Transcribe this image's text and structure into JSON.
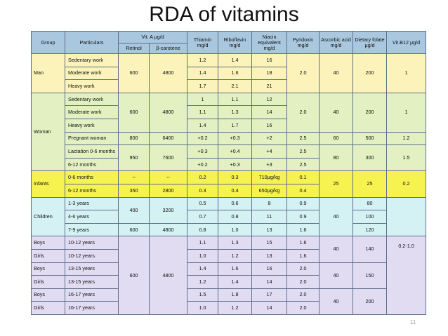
{
  "title": "RDA of vitamins",
  "page_number": "11",
  "colors": {
    "header": "#a9c8e0",
    "man": "#fbf3b9",
    "woman": "#e3f0c2",
    "infants": "#f6f250",
    "children": "#d4f1f4",
    "boys_girls": "#e2dcf3"
  },
  "header": {
    "group": "Group",
    "particulars": "Particulars",
    "vit_a": "Vit. A μg/d",
    "retinol": "Retinol",
    "carotene": "β-carotene",
    "thiamin": "Thiamin mg/d",
    "riboflavin": "Riboflavin mg/d",
    "niacin": "Niacin equivalent mg/d",
    "pyridoxin": "Pyridoxin mg/d",
    "ascorbic": "Ascorbic acid mg/d",
    "folate": "Dietary folate μg/d",
    "b12": "Vit.B12 μg/d"
  },
  "groups": {
    "man": "Man",
    "woman": "Woman",
    "infants": "Infants",
    "children": "Children"
  },
  "rows": [
    {
      "group": "",
      "particular": "Sedentary work",
      "retinol": "",
      "carotene": "",
      "thiamin": "1.2",
      "riboflavin": "1.4",
      "niacin": "16",
      "pyridoxin": "",
      "ascorbic": "",
      "folate": "",
      "b12": ""
    },
    {
      "group": "",
      "particular": "Moderate work",
      "retinol": "600",
      "carotene": "4800",
      "thiamin": "1.4",
      "riboflavin": "1.6",
      "niacin": "18",
      "pyridoxin": "2.0",
      "ascorbic": "40",
      "folate": "200",
      "b12": "1"
    },
    {
      "group": "",
      "particular": "Heavy work",
      "retinol": "",
      "carotene": "",
      "thiamin": "1.7",
      "riboflavin": "2.1",
      "niacin": "21",
      "pyridoxin": "",
      "ascorbic": "",
      "folate": "",
      "b12": ""
    },
    {
      "group": "",
      "particular": "Sedentary work",
      "retinol": "",
      "carotene": "",
      "thiamin": "1",
      "riboflavin": "1.1",
      "niacin": "12",
      "pyridoxin": "",
      "ascorbic": "",
      "folate": "",
      "b12": ""
    },
    {
      "group": "",
      "particular": "Moderate work",
      "retinol": "600",
      "carotene": "4800",
      "thiamin": "1.1",
      "riboflavin": "1.3",
      "niacin": "14",
      "pyridoxin": "2.0",
      "ascorbic": "40",
      "folate": "200",
      "b12": "1"
    },
    {
      "group": "",
      "particular": "Heavy work",
      "retinol": "",
      "carotene": "",
      "thiamin": "1.4",
      "riboflavin": "1.7",
      "niacin": "16",
      "pyridoxin": "",
      "ascorbic": "",
      "folate": "",
      "b12": ""
    },
    {
      "group": "",
      "particular": "Pregnant woman",
      "retinol": "800",
      "carotene": "6400",
      "thiamin": "+0.2",
      "riboflavin": "+0.3",
      "niacin": "+2",
      "pyridoxin": "2.5",
      "ascorbic": "60",
      "folate": "500",
      "b12": "1.2"
    },
    {
      "group": "",
      "particular": "Lactation 0-6 months",
      "retinol": "950",
      "carotene": "7600",
      "thiamin": "+0.3",
      "riboflavin": "+0.4",
      "niacin": "+4",
      "pyridoxin": "2.5",
      "ascorbic": "80",
      "folate": "300",
      "b12": "1.5"
    },
    {
      "group": "",
      "particular": "6-12 months",
      "retinol": "",
      "carotene": "",
      "thiamin": "+0.2",
      "riboflavin": "+0.3",
      "niacin": "+3",
      "pyridoxin": "2.5",
      "ascorbic": "",
      "folate": "",
      "b12": ""
    },
    {
      "group": "",
      "particular": "0-6 months",
      "retinol": "--",
      "carotene": "--",
      "thiamin": "0.2",
      "riboflavin": "0.3",
      "niacin": "710μg/kg",
      "pyridoxin": "0.1",
      "ascorbic": "25",
      "folate": "25",
      "b12": "0.2"
    },
    {
      "group": "",
      "particular": "6-12 months",
      "retinol": "350",
      "carotene": "2800",
      "thiamin": "0.3",
      "riboflavin": "0.4",
      "niacin": "650μg/kg",
      "pyridoxin": "0.4",
      "ascorbic": "",
      "folate": "",
      "b12": ""
    },
    {
      "group": "",
      "particular": "1-3 years",
      "retinol": "400",
      "carotene": "3200",
      "thiamin": "0.5",
      "riboflavin": "0.6",
      "niacin": "8",
      "pyridoxin": "0.9",
      "ascorbic": "40",
      "folate": "80",
      "b12": ""
    },
    {
      "group": "",
      "particular": "4-6 years",
      "retinol": "",
      "carotene": "",
      "thiamin": "0.7",
      "riboflavin": "0.8",
      "niacin": "11",
      "pyridoxin": "0.9",
      "ascorbic": "",
      "folate": "100",
      "b12": ""
    },
    {
      "group": "",
      "particular": "7-9 years",
      "retinol": "600",
      "carotene": "4800",
      "thiamin": "0.8",
      "riboflavin": "1.0",
      "niacin": "13",
      "pyridoxin": "1.6",
      "ascorbic": "",
      "folate": "120",
      "b12": ""
    },
    {
      "group": "Boys",
      "particular": "10-12 years",
      "retinol": "600",
      "carotene": "4800",
      "thiamin": "1.1",
      "riboflavin": "1.3",
      "niacin": "15",
      "pyridoxin": "1.6",
      "ascorbic": "40",
      "folate": "140",
      "b12": "0.2-1.0"
    },
    {
      "group": "Girls",
      "particular": "10-12 years",
      "retinol": "",
      "carotene": "",
      "thiamin": "1.0",
      "riboflavin": "1.2",
      "niacin": "13",
      "pyridoxin": "1.6",
      "ascorbic": "",
      "folate": "",
      "b12": ""
    },
    {
      "group": "Boys",
      "particular": "13-15 years",
      "retinol": "",
      "carotene": "",
      "thiamin": "1.4",
      "riboflavin": "1.6",
      "niacin": "16",
      "pyridoxin": "2.0",
      "ascorbic": "40",
      "folate": "150",
      "b12": ""
    },
    {
      "group": "Girls",
      "particular": "13-15 years",
      "retinol": "",
      "carotene": "",
      "thiamin": "1.2",
      "riboflavin": "1.4",
      "niacin": "14",
      "pyridoxin": "2.0",
      "ascorbic": "",
      "folate": "",
      "b12": ""
    },
    {
      "group": "Boys",
      "particular": "16-17 years",
      "retinol": "",
      "carotene": "",
      "thiamin": "1.5",
      "riboflavin": "1.8",
      "niacin": "17",
      "pyridoxin": "2.0",
      "ascorbic": "40",
      "folate": "200",
      "b12": ""
    },
    {
      "group": "Girls",
      "particular": "16-17 years",
      "retinol": "",
      "carotene": "",
      "thiamin": "1.0",
      "riboflavin": "1.2",
      "niacin": "14",
      "pyridoxin": "2.0",
      "ascorbic": "",
      "folate": "",
      "b12": ""
    }
  ]
}
